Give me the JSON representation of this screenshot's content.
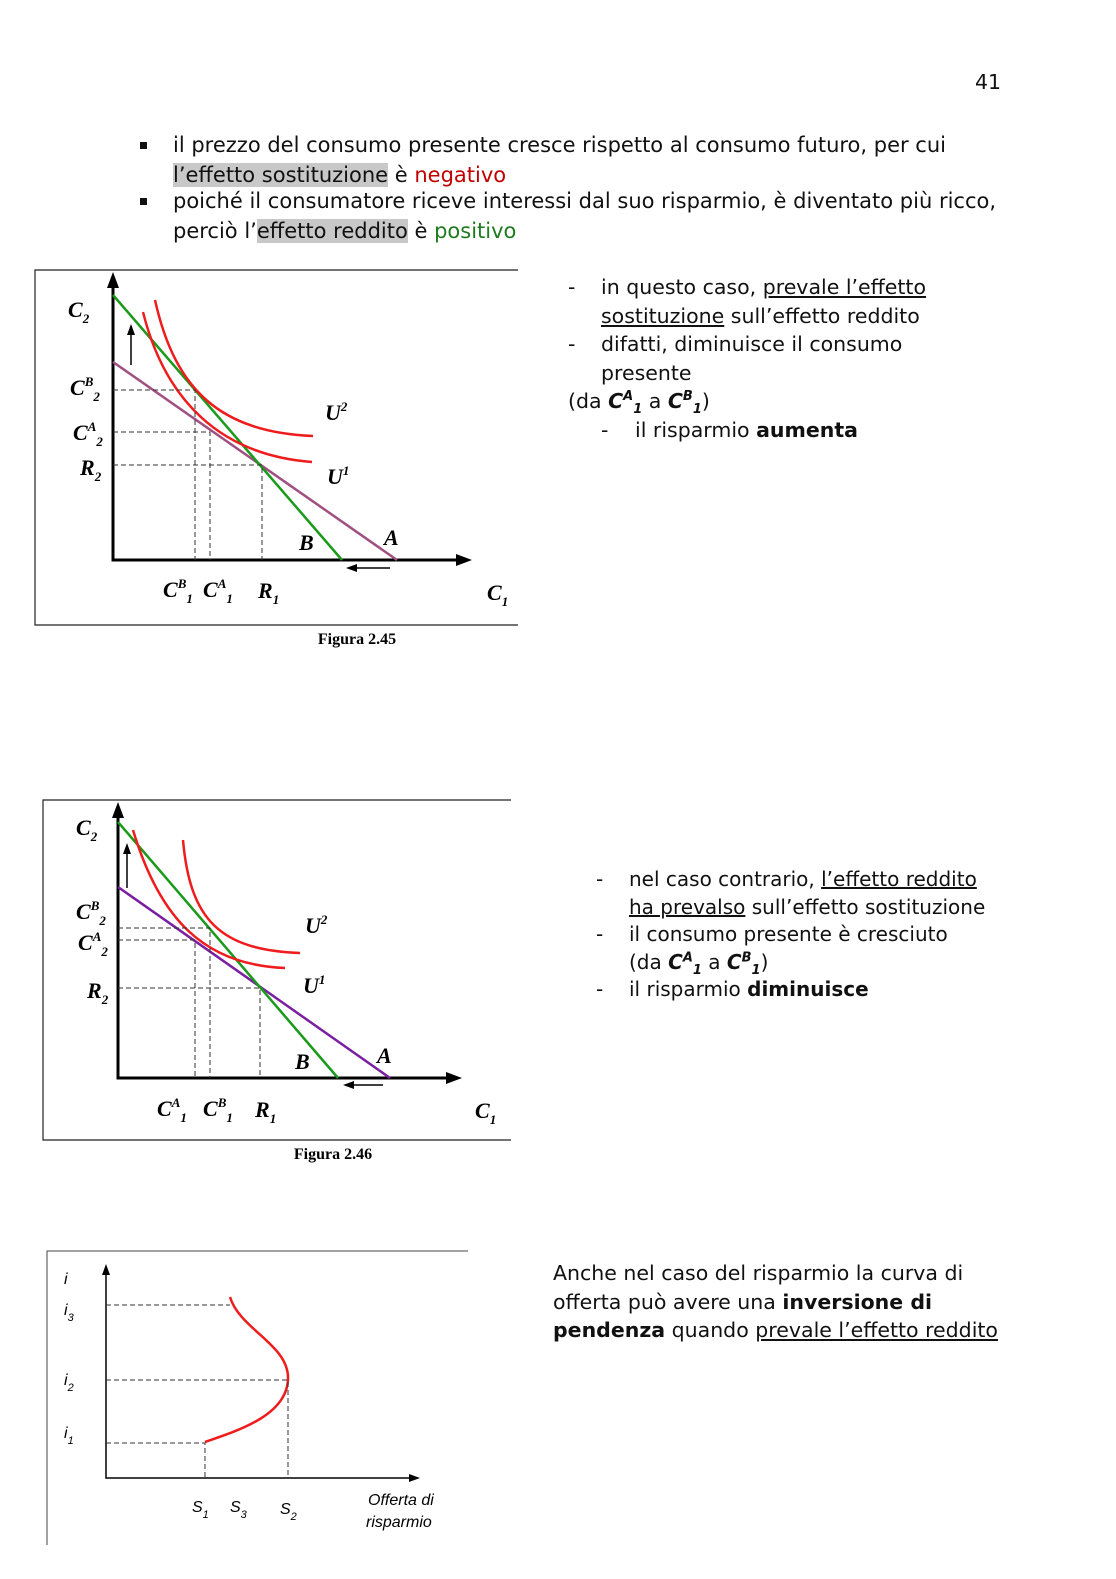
{
  "page_number": "41",
  "intro_bullets": [
    {
      "text": "il prezzo del consumo presente cresce rispetto al consumo futuro, per cui ",
      "highlight": "l’effetto sostituzione",
      "connector": " è ",
      "result": "negativo"
    },
    {
      "text": "poiché il consumatore riceve interessi dal suo risparmio, è diventato più ricco, perciò l’",
      "highlight": "effetto reddito",
      "connector": " è ",
      "result": "positivo"
    }
  ],
  "figures": [
    {
      "caption": "Figura 2.45",
      "labels": [
        {
          "base": "C",
          "sub": "2"
        },
        {
          "base": "C",
          "sup": "B",
          "sub": "2"
        },
        {
          "base": "C",
          "sup": "A",
          "sub": "2"
        },
        {
          "base": "R",
          "sub": "2"
        },
        {
          "base": "U",
          "sup": "2"
        },
        {
          "base": "U",
          "sup": "1"
        },
        {
          "base": "B"
        },
        {
          "base": "A"
        },
        {
          "base": "C",
          "sup": "B",
          "sub": "1"
        },
        {
          "base": "C",
          "sup": "A",
          "sub": "1"
        },
        {
          "base": "R",
          "sub": "1"
        },
        {
          "base": "C",
          "sub": "1"
        }
      ],
      "notes": [
        {
          "text": "in questo caso, ",
          "underline": "prevale l’effetto sostituzione",
          "after": " sull’effetto reddito"
        },
        {
          "text": "difatti, diminuisce il consumo presente"
        },
        {
          "open": "(da ",
          "from": {
            "base": "C",
            "sup": "A",
            "sub": "1"
          },
          "mid": " a ",
          "to": {
            "base": "C",
            "sup": "B",
            "sub": "1"
          },
          "close": ")"
        },
        {
          "text": "il risparmio ",
          "bold": "aumenta"
        }
      ]
    },
    {
      "caption": "Figura 2.46",
      "labels": [
        {
          "base": "C",
          "sub": "2"
        },
        {
          "base": "C",
          "sup": "B",
          "sub": "2"
        },
        {
          "base": "C",
          "sup": "A",
          "sub": "2"
        },
        {
          "base": "R",
          "sub": "2"
        },
        {
          "base": "U",
          "sup": "2"
        },
        {
          "base": "U",
          "sup": "1"
        },
        {
          "base": "B"
        },
        {
          "base": "A"
        },
        {
          "base": "C",
          "sup": "A",
          "sub": "1"
        },
        {
          "base": "C",
          "sup": "B",
          "sub": "1"
        },
        {
          "base": "R",
          "sub": "1"
        },
        {
          "base": "C",
          "sub": "1"
        }
      ],
      "notes": [
        {
          "text": "nel caso contrario, ",
          "underline": "l’effetto reddito ha prevalso",
          "after": " sull’effetto sostituzione"
        },
        {
          "text": "il consumo presente è cresciuto",
          "open": "(da ",
          "from": {
            "base": "C",
            "sup": "A",
            "sub": "1"
          },
          "mid": " a ",
          "to": {
            "base": "C",
            "sup": "B",
            "sub": "1"
          },
          "close": ")"
        },
        {
          "text": "il risparmio ",
          "bold": "diminuisce"
        }
      ]
    },
    {
      "labels": [
        {
          "base": "i"
        },
        {
          "base": "i",
          "sub": "3"
        },
        {
          "base": "i",
          "sub": "2"
        },
        {
          "base": "i",
          "sub": "1"
        },
        {
          "base": "S",
          "sub": "1"
        },
        {
          "base": "S",
          "sub": "3"
        },
        {
          "base": "S",
          "sub": "2"
        }
      ],
      "x_axis_label": [
        "Offerta di",
        "risparmio"
      ],
      "note": {
        "text": "Anche nel caso del risparmio la curva di offerta può avere una ",
        "bold": "inversione di pendenza",
        "mid": " quando ",
        "underline": "prevale l’effetto reddito"
      }
    }
  ]
}
